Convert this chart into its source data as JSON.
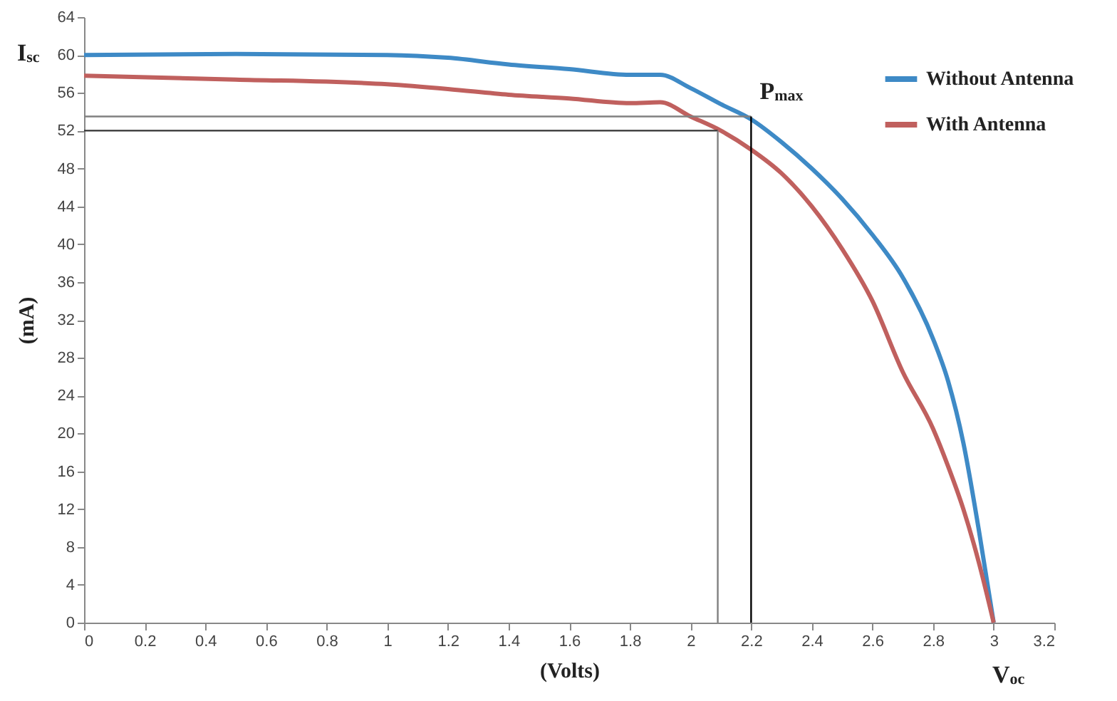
{
  "chart_data": {
    "type": "line",
    "xlabel": "(Volts)",
    "ylabel": "(mA)",
    "x": [
      0,
      0.5,
      1.0,
      1.2,
      1.4,
      1.6,
      1.8,
      1.9,
      2.0,
      2.1,
      2.2,
      2.3,
      2.4,
      2.5,
      2.6,
      2.7,
      2.8,
      2.85,
      2.9,
      2.95,
      3.0
    ],
    "series": [
      {
        "name": "Without Antenna",
        "color": "#3e8ac6",
        "values": [
          60,
          60.1,
          60,
          59.7,
          59,
          58.5,
          57.9,
          57.9,
          56.5,
          54.8,
          53.2,
          50.8,
          48,
          44.8,
          41,
          36.5,
          30,
          25.5,
          19,
          10,
          0
        ]
      },
      {
        "name": "With Antenna",
        "color": "#c0605e",
        "values": [
          57.8,
          57.4,
          56.9,
          56.4,
          55.8,
          55.4,
          54.9,
          55,
          53.5,
          52,
          50,
          47.5,
          44,
          39.5,
          34,
          26.5,
          20.5,
          16.5,
          12,
          6.5,
          0
        ]
      }
    ],
    "xlim": [
      0,
      3.2
    ],
    "xticks": [
      0,
      0.2,
      0.4,
      0.6,
      0.8,
      1,
      1.2,
      1.4,
      1.6,
      1.8,
      2,
      2.2,
      2.4,
      2.6,
      2.8,
      3,
      3.2
    ],
    "ylim": [
      0,
      64
    ],
    "yticks": [
      0,
      4,
      8,
      12,
      16,
      20,
      24,
      28,
      32,
      36,
      40,
      44,
      48,
      52,
      56,
      60,
      64
    ],
    "ref_lines": [
      {
        "axis": "y",
        "value": 53.5,
        "color": "#808080"
      },
      {
        "axis": "x",
        "value": 2.2,
        "color": "#000000"
      },
      {
        "axis": "y",
        "value": 52,
        "color": "#333333"
      },
      {
        "axis": "x",
        "value": 2.09,
        "color": "#808080"
      }
    ],
    "annotations": [
      {
        "text": "I$_{sc}$",
        "x": 0,
        "y": 60
      },
      {
        "text": "P$_{max}$",
        "x": 2.2,
        "y": 53.2
      },
      {
        "text": "V$_{oc}$",
        "x": 3,
        "y": 0
      }
    ],
    "grid": false,
    "legend": "top right",
    "marker": "none",
    "line_style": "solid"
  }
}
